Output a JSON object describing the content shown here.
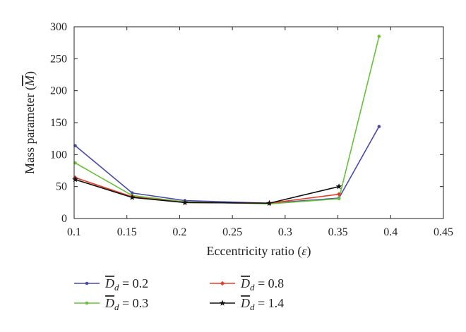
{
  "chart_data": {
    "type": "line",
    "xlabel": "Eccentricity ratio",
    "xlabel_symbol": "ε",
    "ylabel": "Mass parameter",
    "ylabel_symbol": "M",
    "xlim": [
      0.1,
      0.45
    ],
    "ylim": [
      0,
      300
    ],
    "xticks": [
      "0.1",
      "0.15",
      "0.2",
      "0.25",
      "0.3",
      "0.35",
      "0.4",
      "0.45"
    ],
    "yticks": [
      "0",
      "50",
      "100",
      "150",
      "200",
      "250",
      "300"
    ],
    "grid": false,
    "legend_position": "bottom",
    "series": [
      {
        "name": "D_d = 0.2",
        "legend_symbol": "D",
        "legend_subscript": "d",
        "legend_value": "= 0.2",
        "color": "#4a4aa8",
        "marker": "dot",
        "x": [
          0.101,
          0.155,
          0.205,
          0.285,
          0.351,
          0.389
        ],
        "y": [
          114,
          40,
          28,
          24,
          32,
          144
        ]
      },
      {
        "name": "D_d = 0.3",
        "legend_symbol": "D",
        "legend_subscript": "d",
        "legend_value": "= 0.3",
        "color": "#6abf3c",
        "marker": "dot",
        "x": [
          0.101,
          0.155,
          0.205,
          0.285,
          0.351,
          0.389
        ],
        "y": [
          87,
          36,
          26,
          23,
          31,
          285
        ]
      },
      {
        "name": "D_d = 0.8",
        "legend_symbol": "D",
        "legend_subscript": "d",
        "legend_value": "= 0.8",
        "color": "#e0402a",
        "marker": "diamond",
        "x": [
          0.101,
          0.155,
          0.205,
          0.285,
          0.351
        ],
        "y": [
          64,
          34,
          25,
          24,
          38
        ]
      },
      {
        "name": "D_d = 1.4",
        "legend_symbol": "D",
        "legend_subscript": "d",
        "legend_value": "= 1.4",
        "color": "#111111",
        "marker": "star",
        "x": [
          0.101,
          0.155,
          0.205,
          0.285,
          0.351
        ],
        "y": [
          61,
          33,
          25,
          24,
          50
        ]
      }
    ]
  }
}
